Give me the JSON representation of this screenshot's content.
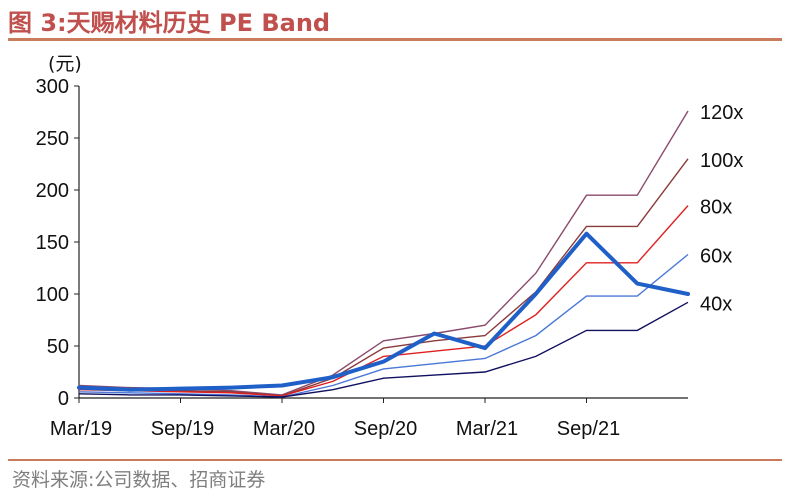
{
  "figure": {
    "title": "图 3:天赐材料历史 PE Band",
    "source": "资料来源:公司数据、招商证券"
  },
  "colors": {
    "accent": "#c0504d",
    "rule": "#c97b5b",
    "price": "#1f5fc8",
    "band_120x": "#8a4a6b",
    "band_100x": "#8b3a3a",
    "band_80x": "#e02020",
    "band_60x": "#4a78d8",
    "band_40x": "#101060"
  },
  "chart_data": {
    "type": "line",
    "unit": "(元)",
    "ylim": [
      0,
      300
    ],
    "yticks": [
      0,
      50,
      100,
      150,
      200,
      250,
      300
    ],
    "x_range": [
      "2019-03",
      "2022-03"
    ],
    "xticks": [
      "Mar/19",
      "Sep/19",
      "Mar/20",
      "Sep/20",
      "Mar/21",
      "Sep/21"
    ],
    "legend": "right-end labels",
    "grid": false,
    "x": [
      "2019-03",
      "2019-06",
      "2019-09",
      "2019-12",
      "2020-03",
      "2020-06",
      "2020-09",
      "2020-12",
      "2021-03",
      "2021-06",
      "2021-09",
      "2021-12",
      "2022-03"
    ],
    "series": [
      {
        "name": "120x",
        "values": [
          12,
          10,
          9,
          7,
          3,
          22,
          55,
          62,
          70,
          120,
          195,
          195,
          276
        ]
      },
      {
        "name": "100x",
        "values": [
          10,
          8,
          7,
          6,
          2,
          19,
          48,
          55,
          60,
          102,
          165,
          165,
          230
        ]
      },
      {
        "name": "80x",
        "values": [
          8,
          7,
          6,
          5,
          2,
          16,
          40,
          45,
          50,
          80,
          130,
          130,
          185
        ]
      },
      {
        "name": "60x",
        "values": [
          6,
          5,
          4,
          3,
          1,
          12,
          28,
          33,
          38,
          60,
          98,
          98,
          138
        ]
      },
      {
        "name": "40x",
        "values": [
          4,
          3,
          3,
          2,
          1,
          8,
          19,
          22,
          25,
          40,
          65,
          65,
          92
        ]
      },
      {
        "name": "",
        "role": "price",
        "values": [
          10,
          8,
          9,
          10,
          12,
          20,
          35,
          62,
          48,
          100,
          158,
          110,
          100
        ]
      }
    ]
  }
}
